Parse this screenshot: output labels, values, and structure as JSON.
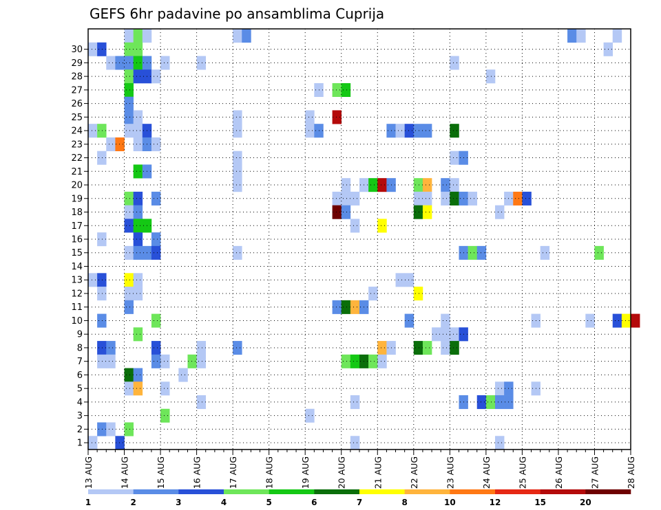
{
  "chart_data": {
    "type": "heatmap",
    "title": "GEFS 6hr padavine po ansamblima Cuprija",
    "y_categories": [
      "1",
      "2",
      "3",
      "4",
      "5",
      "6",
      "7",
      "8",
      "9",
      "10",
      "11",
      "12",
      "13",
      "14",
      "15",
      "16",
      "17",
      "18",
      "19",
      "20",
      "21",
      "22",
      "23",
      "24",
      "25",
      "26",
      "27",
      "28",
      "29",
      "30"
    ],
    "x_ticks": [
      "13 AUG",
      "14 AUG",
      "15 AUG",
      "16 AUG",
      "17 AUG",
      "18 AUG",
      "19 AUG",
      "20 AUG",
      "21 AUG",
      "22 AUG",
      "23 AUG",
      "24 AUG",
      "25 AUG",
      "26 AUG",
      "27 AUG",
      "28 AUG"
    ],
    "x_range": [
      "13 AUG 00Z",
      "28 AUG 00Z"
    ],
    "time_step_hours": 6,
    "grid": true,
    "colorbar": {
      "position": "bottom",
      "labels": [
        "1",
        "2",
        "3",
        "4",
        "5",
        "6",
        "7",
        "8",
        "10",
        "12",
        "15",
        "20"
      ],
      "colors": [
        "#b4c8f5",
        "#5a8ce6",
        "#2850d8",
        "#6ee65a",
        "#14c814",
        "#0a6e0a",
        "#ffff00",
        "#ffb43c",
        "#ff7814",
        "#e62814",
        "#b40a0a",
        "#6e0000"
      ]
    },
    "legend_note": "each cell = one 6-hour step; level index 0..11 maps to colorbar colors",
    "cells": [
      {
        "member": 30,
        "step": 4,
        "level": 0
      },
      {
        "member": 30,
        "step": 5,
        "level": 3
      },
      {
        "member": 30,
        "step": 6,
        "level": 0
      },
      {
        "member": 30,
        "step": 16,
        "level": 0
      },
      {
        "member": 30,
        "step": 17,
        "level": 1
      },
      {
        "member": 30,
        "step": 53,
        "level": 1
      },
      {
        "member": 30,
        "step": 54,
        "level": 0
      },
      {
        "member": 30,
        "step": 58,
        "level": 0
      },
      {
        "member": 29,
        "step": 0,
        "level": 0
      },
      {
        "member": 29,
        "step": 1,
        "level": 2
      },
      {
        "member": 29,
        "step": 4,
        "level": 3
      },
      {
        "member": 29,
        "step": 5,
        "level": 3
      },
      {
        "member": 29,
        "step": 57,
        "level": 0
      },
      {
        "member": 28,
        "step": 2,
        "level": 0
      },
      {
        "member": 28,
        "step": 3,
        "level": 1
      },
      {
        "member": 28,
        "step": 4,
        "level": 1
      },
      {
        "member": 28,
        "step": 5,
        "level": 4
      },
      {
        "member": 28,
        "step": 6,
        "level": 1
      },
      {
        "member": 28,
        "step": 8,
        "level": 0
      },
      {
        "member": 28,
        "step": 12,
        "level": 0
      },
      {
        "member": 28,
        "step": 40,
        "level": 0
      },
      {
        "member": 27,
        "step": 4,
        "level": 3
      },
      {
        "member": 27,
        "step": 5,
        "level": 2
      },
      {
        "member": 27,
        "step": 6,
        "level": 2
      },
      {
        "member": 27,
        "step": 7,
        "level": 0
      },
      {
        "member": 27,
        "step": 44,
        "level": 0
      },
      {
        "member": 26,
        "step": 4,
        "level": 4
      },
      {
        "member": 26,
        "step": 25,
        "level": 0
      },
      {
        "member": 26,
        "step": 27,
        "level": 3
      },
      {
        "member": 26,
        "step": 28,
        "level": 4
      },
      {
        "member": 25,
        "step": 4,
        "level": 1
      },
      {
        "member": 24,
        "step": 4,
        "level": 1
      },
      {
        "member": 24,
        "step": 5,
        "level": 0
      },
      {
        "member": 24,
        "step": 16,
        "level": 0
      },
      {
        "member": 24,
        "step": 24,
        "level": 0
      },
      {
        "member": 24,
        "step": 27,
        "level": 10
      },
      {
        "member": 23,
        "step": 0,
        "level": 0
      },
      {
        "member": 23,
        "step": 1,
        "level": 3
      },
      {
        "member": 23,
        "step": 4,
        "level": 0
      },
      {
        "member": 23,
        "step": 5,
        "level": 0
      },
      {
        "member": 23,
        "step": 6,
        "level": 2
      },
      {
        "member": 23,
        "step": 16,
        "level": 0
      },
      {
        "member": 23,
        "step": 24,
        "level": 0
      },
      {
        "member": 23,
        "step": 25,
        "level": 1
      },
      {
        "member": 23,
        "step": 33,
        "level": 1
      },
      {
        "member": 23,
        "step": 34,
        "level": 0
      },
      {
        "member": 23,
        "step": 35,
        "level": 2
      },
      {
        "member": 23,
        "step": 36,
        "level": 1
      },
      {
        "member": 23,
        "step": 37,
        "level": 1
      },
      {
        "member": 23,
        "step": 40,
        "level": 5
      },
      {
        "member": 22,
        "step": 2,
        "level": 0
      },
      {
        "member": 22,
        "step": 3,
        "level": 8
      },
      {
        "member": 22,
        "step": 5,
        "level": 0
      },
      {
        "member": 22,
        "step": 6,
        "level": 1
      },
      {
        "member": 22,
        "step": 7,
        "level": 0
      },
      {
        "member": 21,
        "step": 1,
        "level": 0
      },
      {
        "member": 21,
        "step": 16,
        "level": 0
      },
      {
        "member": 21,
        "step": 40,
        "level": 0
      },
      {
        "member": 21,
        "step": 41,
        "level": 1
      },
      {
        "member": 20,
        "step": 5,
        "level": 4
      },
      {
        "member": 20,
        "step": 6,
        "level": 1
      },
      {
        "member": 20,
        "step": 16,
        "level": 0
      },
      {
        "member": 19,
        "step": 16,
        "level": 0
      },
      {
        "member": 19,
        "step": 28,
        "level": 0
      },
      {
        "member": 19,
        "step": 30,
        "level": 0
      },
      {
        "member": 19,
        "step": 31,
        "level": 4
      },
      {
        "member": 19,
        "step": 32,
        "level": 10
      },
      {
        "member": 19,
        "step": 33,
        "level": 1
      },
      {
        "member": 19,
        "step": 36,
        "level": 3
      },
      {
        "member": 19,
        "step": 37,
        "level": 7
      },
      {
        "member": 19,
        "step": 39,
        "level": 1
      },
      {
        "member": 19,
        "step": 40,
        "level": 0
      },
      {
        "member": 18,
        "step": 4,
        "level": 3
      },
      {
        "member": 18,
        "step": 5,
        "level": 2
      },
      {
        "member": 18,
        "step": 7,
        "level": 1
      },
      {
        "member": 18,
        "step": 27,
        "level": 0
      },
      {
        "member": 18,
        "step": 28,
        "level": 0
      },
      {
        "member": 18,
        "step": 29,
        "level": 0
      },
      {
        "member": 18,
        "step": 36,
        "level": 0
      },
      {
        "member": 18,
        "step": 37,
        "level": 0
      },
      {
        "member": 18,
        "step": 39,
        "level": 0
      },
      {
        "member": 18,
        "step": 40,
        "level": 5
      },
      {
        "member": 18,
        "step": 41,
        "level": 1
      },
      {
        "member": 18,
        "step": 42,
        "level": 0
      },
      {
        "member": 18,
        "step": 46,
        "level": 0
      },
      {
        "member": 18,
        "step": 47,
        "level": 8
      },
      {
        "member": 18,
        "step": 48,
        "level": 2
      },
      {
        "member": 17,
        "step": 4,
        "level": 0
      },
      {
        "member": 17,
        "step": 5,
        "level": 1
      },
      {
        "member": 17,
        "step": 27,
        "level": 11
      },
      {
        "member": 17,
        "step": 28,
        "level": 1
      },
      {
        "member": 17,
        "step": 36,
        "level": 5
      },
      {
        "member": 17,
        "step": 37,
        "level": 6
      },
      {
        "member": 17,
        "step": 45,
        "level": 0
      },
      {
        "member": 16,
        "step": 4,
        "level": 2
      },
      {
        "member": 16,
        "step": 5,
        "level": 4
      },
      {
        "member": 16,
        "step": 6,
        "level": 4
      },
      {
        "member": 16,
        "step": 29,
        "level": 0
      },
      {
        "member": 16,
        "step": 32,
        "level": 6
      },
      {
        "member": 15,
        "step": 1,
        "level": 0
      },
      {
        "member": 15,
        "step": 5,
        "level": 2
      },
      {
        "member": 15,
        "step": 7,
        "level": 1
      },
      {
        "member": 14,
        "step": 4,
        "level": 0
      },
      {
        "member": 14,
        "step": 5,
        "level": 1
      },
      {
        "member": 14,
        "step": 6,
        "level": 1
      },
      {
        "member": 14,
        "step": 7,
        "level": 2
      },
      {
        "member": 14,
        "step": 16,
        "level": 0
      },
      {
        "member": 14,
        "step": 41,
        "level": 1
      },
      {
        "member": 14,
        "step": 42,
        "level": 3
      },
      {
        "member": 14,
        "step": 43,
        "level": 1
      },
      {
        "member": 14,
        "step": 50,
        "level": 0
      },
      {
        "member": 14,
        "step": 56,
        "level": 3
      },
      {
        "member": 12,
        "step": 0,
        "level": 0
      },
      {
        "member": 12,
        "step": 1,
        "level": 2
      },
      {
        "member": 12,
        "step": 4,
        "level": 6
      },
      {
        "member": 12,
        "step": 5,
        "level": 0
      },
      {
        "member": 12,
        "step": 34,
        "level": 0
      },
      {
        "member": 12,
        "step": 35,
        "level": 0
      },
      {
        "member": 11,
        "step": 1,
        "level": 0
      },
      {
        "member": 11,
        "step": 4,
        "level": 0
      },
      {
        "member": 11,
        "step": 5,
        "level": 0
      },
      {
        "member": 11,
        "step": 31,
        "level": 0
      },
      {
        "member": 11,
        "step": 36,
        "level": 6
      },
      {
        "member": 10,
        "step": 4,
        "level": 1
      },
      {
        "member": 10,
        "step": 27,
        "level": 1
      },
      {
        "member": 10,
        "step": 28,
        "level": 5
      },
      {
        "member": 10,
        "step": 29,
        "level": 7
      },
      {
        "member": 10,
        "step": 30,
        "level": 1
      },
      {
        "member": 9,
        "step": 1,
        "level": 1
      },
      {
        "member": 9,
        "step": 7,
        "level": 3
      },
      {
        "member": 9,
        "step": 35,
        "level": 1
      },
      {
        "member": 9,
        "step": 39,
        "level": 0
      },
      {
        "member": 9,
        "step": 49,
        "level": 0
      },
      {
        "member": 9,
        "step": 55,
        "level": 0
      },
      {
        "member": 9,
        "step": 58,
        "level": 2
      },
      {
        "member": 9,
        "step": 59,
        "level": 6
      },
      {
        "member": 9,
        "step": 60,
        "level": 10
      },
      {
        "member": 8,
        "step": 5,
        "level": 3
      },
      {
        "member": 8,
        "step": 38,
        "level": 0
      },
      {
        "member": 8,
        "step": 39,
        "level": 0
      },
      {
        "member": 8,
        "step": 40,
        "level": 0
      },
      {
        "member": 8,
        "step": 41,
        "level": 2
      },
      {
        "member": 7,
        "step": 1,
        "level": 2
      },
      {
        "member": 7,
        "step": 2,
        "level": 1
      },
      {
        "member": 7,
        "step": 7,
        "level": 2
      },
      {
        "member": 7,
        "step": 12,
        "level": 0
      },
      {
        "member": 7,
        "step": 16,
        "level": 1
      },
      {
        "member": 7,
        "step": 32,
        "level": 7
      },
      {
        "member": 7,
        "step": 33,
        "level": 0
      },
      {
        "member": 7,
        "step": 36,
        "level": 5
      },
      {
        "member": 7,
        "step": 37,
        "level": 3
      },
      {
        "member": 7,
        "step": 39,
        "level": 0
      },
      {
        "member": 7,
        "step": 40,
        "level": 5
      },
      {
        "member": 6,
        "step": 1,
        "level": 0
      },
      {
        "member": 6,
        "step": 2,
        "level": 0
      },
      {
        "member": 6,
        "step": 7,
        "level": 1
      },
      {
        "member": 6,
        "step": 8,
        "level": 0
      },
      {
        "member": 6,
        "step": 11,
        "level": 3
      },
      {
        "member": 6,
        "step": 12,
        "level": 0
      },
      {
        "member": 6,
        "step": 28,
        "level": 3
      },
      {
        "member": 6,
        "step": 29,
        "level": 4
      },
      {
        "member": 6,
        "step": 30,
        "level": 5
      },
      {
        "member": 6,
        "step": 31,
        "level": 3
      },
      {
        "member": 6,
        "step": 32,
        "level": 0
      },
      {
        "member": 5,
        "step": 4,
        "level": 5
      },
      {
        "member": 5,
        "step": 5,
        "level": 1
      },
      {
        "member": 5,
        "step": 10,
        "level": 0
      },
      {
        "member": 4,
        "step": 4,
        "level": 0
      },
      {
        "member": 4,
        "step": 5,
        "level": 7
      },
      {
        "member": 4,
        "step": 8,
        "level": 0
      },
      {
        "member": 4,
        "step": 45,
        "level": 0
      },
      {
        "member": 4,
        "step": 46,
        "level": 1
      },
      {
        "member": 4,
        "step": 49,
        "level": 0
      },
      {
        "member": 3,
        "step": 12,
        "level": 0
      },
      {
        "member": 3,
        "step": 29,
        "level": 0
      },
      {
        "member": 3,
        "step": 41,
        "level": 1
      },
      {
        "member": 3,
        "step": 43,
        "level": 2
      },
      {
        "member": 3,
        "step": 44,
        "level": 3
      },
      {
        "member": 3,
        "step": 45,
        "level": 1
      },
      {
        "member": 3,
        "step": 46,
        "level": 1
      },
      {
        "member": 2,
        "step": 8,
        "level": 3
      },
      {
        "member": 2,
        "step": 24,
        "level": 0
      },
      {
        "member": 1,
        "step": 1,
        "level": 1
      },
      {
        "member": 1,
        "step": 2,
        "level": 0
      },
      {
        "member": 1,
        "step": 4,
        "level": 3
      },
      {
        "member": 0,
        "step": 0,
        "level": 0
      },
      {
        "member": 0,
        "step": 3,
        "level": 2
      },
      {
        "member": 0,
        "step": 29,
        "level": 0
      },
      {
        "member": 0,
        "step": 45,
        "level": 0
      }
    ]
  }
}
